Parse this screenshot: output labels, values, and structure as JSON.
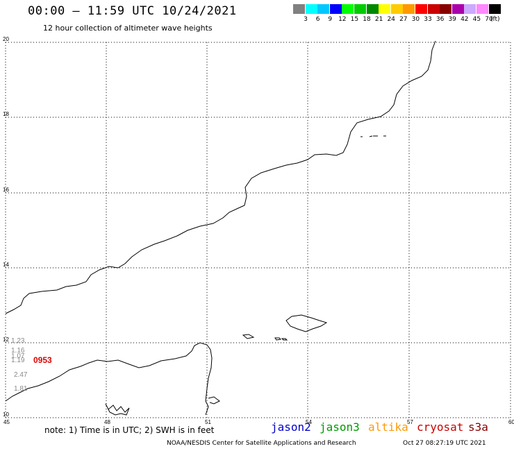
{
  "header": {
    "title": "00:00 – 11:59 UTC 10/24/2021",
    "subtitle": "12 hour collection of altimeter wave heights"
  },
  "legend": {
    "colors": [
      "#808080",
      "#00ffff",
      "#00c8ff",
      "#0000ff",
      "#00ff00",
      "#00cc00",
      "#008800",
      "#ffff00",
      "#ffcc00",
      "#ff9900",
      "#ff0000",
      "#cc0000",
      "#880000",
      "#aa00aa",
      "#ccaaff",
      "#ff88ff",
      "#000000"
    ],
    "labels": [
      "3",
      "6",
      "9",
      "12",
      "15",
      "18",
      "21",
      "24",
      "27",
      "30",
      "33",
      "36",
      "39",
      "42",
      "45",
      "70"
    ],
    "unit": "(ft)"
  },
  "axes": {
    "x_ticks": [
      "45",
      "48",
      "51",
      "54",
      "57",
      "60"
    ],
    "y_ticks": [
      "20",
      "18",
      "16",
      "14",
      "12",
      "10"
    ]
  },
  "observations": {
    "values": [
      "1.23",
      "1.16",
      "1.07",
      "1.19",
      "2.47",
      "1.81"
    ],
    "time": "0953"
  },
  "footer": {
    "note": "note: 1) Time is in UTC; 2) SWH is in feet",
    "satellites": [
      {
        "name": "jason2",
        "color": "#0000cc"
      },
      {
        "name": "jason3",
        "color": "#009900"
      },
      {
        "name": "altika",
        "color": "#ff9900"
      },
      {
        "name": "cryosat",
        "color": "#cc0000"
      },
      {
        "name": "s3a",
        "color": "#880000"
      }
    ],
    "credit": "NOAA/NESDIS Center for Satellite Applications and Research",
    "timestamp": "Oct 27 08:27:19 UTC 2021"
  }
}
